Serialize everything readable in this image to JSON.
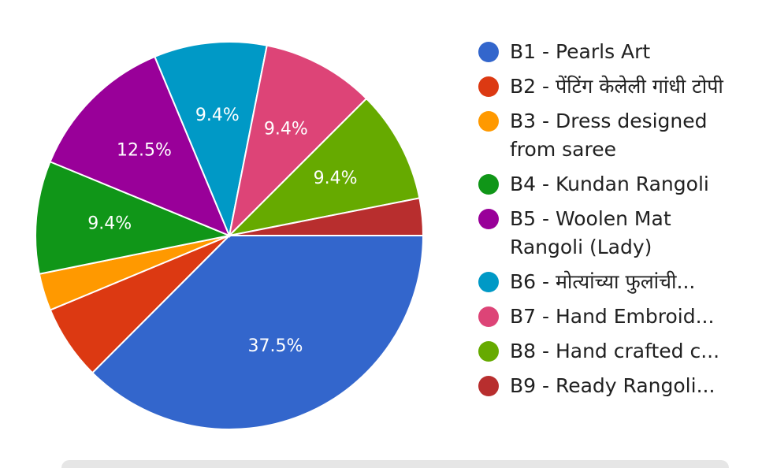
{
  "chart_data": {
    "type": "pie",
    "title": "",
    "slices": [
      {
        "label": "B1 - Pearls Art",
        "value": 37.5,
        "display": "37.5%",
        "color": "#3366CC"
      },
      {
        "label": "B2 - पेंटिंग केलेली गांधी टोपी",
        "value": 6.25,
        "display": "",
        "color": "#DC3912"
      },
      {
        "label": "B3 - Dress designed from saree",
        "value": 3.1,
        "display": "",
        "color": "#FF9900"
      },
      {
        "label": "B4 - Kundan Rangoli",
        "value": 9.4,
        "display": "9.4%",
        "color": "#109618"
      },
      {
        "label": "B5 - Woolen Mat Rangoli (Lady)",
        "value": 12.5,
        "display": "12.5%",
        "color": "#990099"
      },
      {
        "label": "B6 - मोत्यांच्या फुलांची...",
        "value": 9.4,
        "display": "9.4%",
        "color": "#0099C6"
      },
      {
        "label": "B7 - Hand Embroid...",
        "value": 9.4,
        "display": "9.4%",
        "color": "#DD4477"
      },
      {
        "label": "B8 - Hand crafted c...",
        "value": 9.4,
        "display": "9.4%",
        "color": "#66AA00"
      },
      {
        "label": "B9 - Ready Rangoli...",
        "value": 3.1,
        "display": "",
        "color": "#B82E2E"
      }
    ]
  }
}
